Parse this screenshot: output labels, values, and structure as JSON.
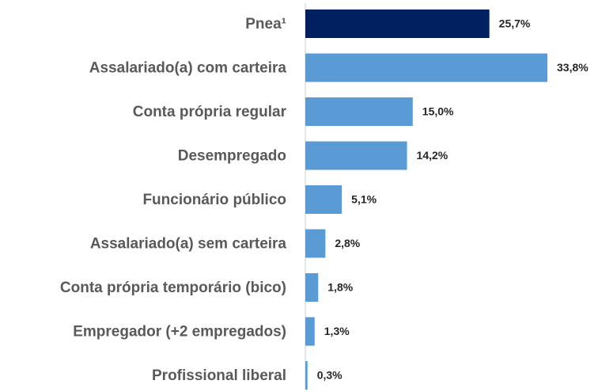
{
  "chart_data": {
    "type": "barh",
    "categories": [
      "Pnea¹",
      "Assalariado(a) com carteira",
      "Conta própria regular",
      "Desempregado",
      "Funcionário público",
      "Assalariado(a) sem carteira",
      "Conta própria temporário (bico)",
      "Empregador (+2 empregados)",
      "Profissional liberal"
    ],
    "values": [
      25.7,
      33.8,
      15.0,
      14.2,
      5.1,
      2.8,
      1.8,
      1.3,
      0.3
    ],
    "value_labels": [
      "25,7%",
      "33,8%",
      "15,0%",
      "14,2%",
      "5,1%",
      "2,8%",
      "1,8%",
      "1,3%",
      "0,3%"
    ],
    "colors": [
      "#002060",
      "#5b9bd5",
      "#5b9bd5",
      "#5b9bd5",
      "#5b9bd5",
      "#5b9bd5",
      "#5b9bd5",
      "#5b9bd5",
      "#5b9bd5"
    ]
  }
}
